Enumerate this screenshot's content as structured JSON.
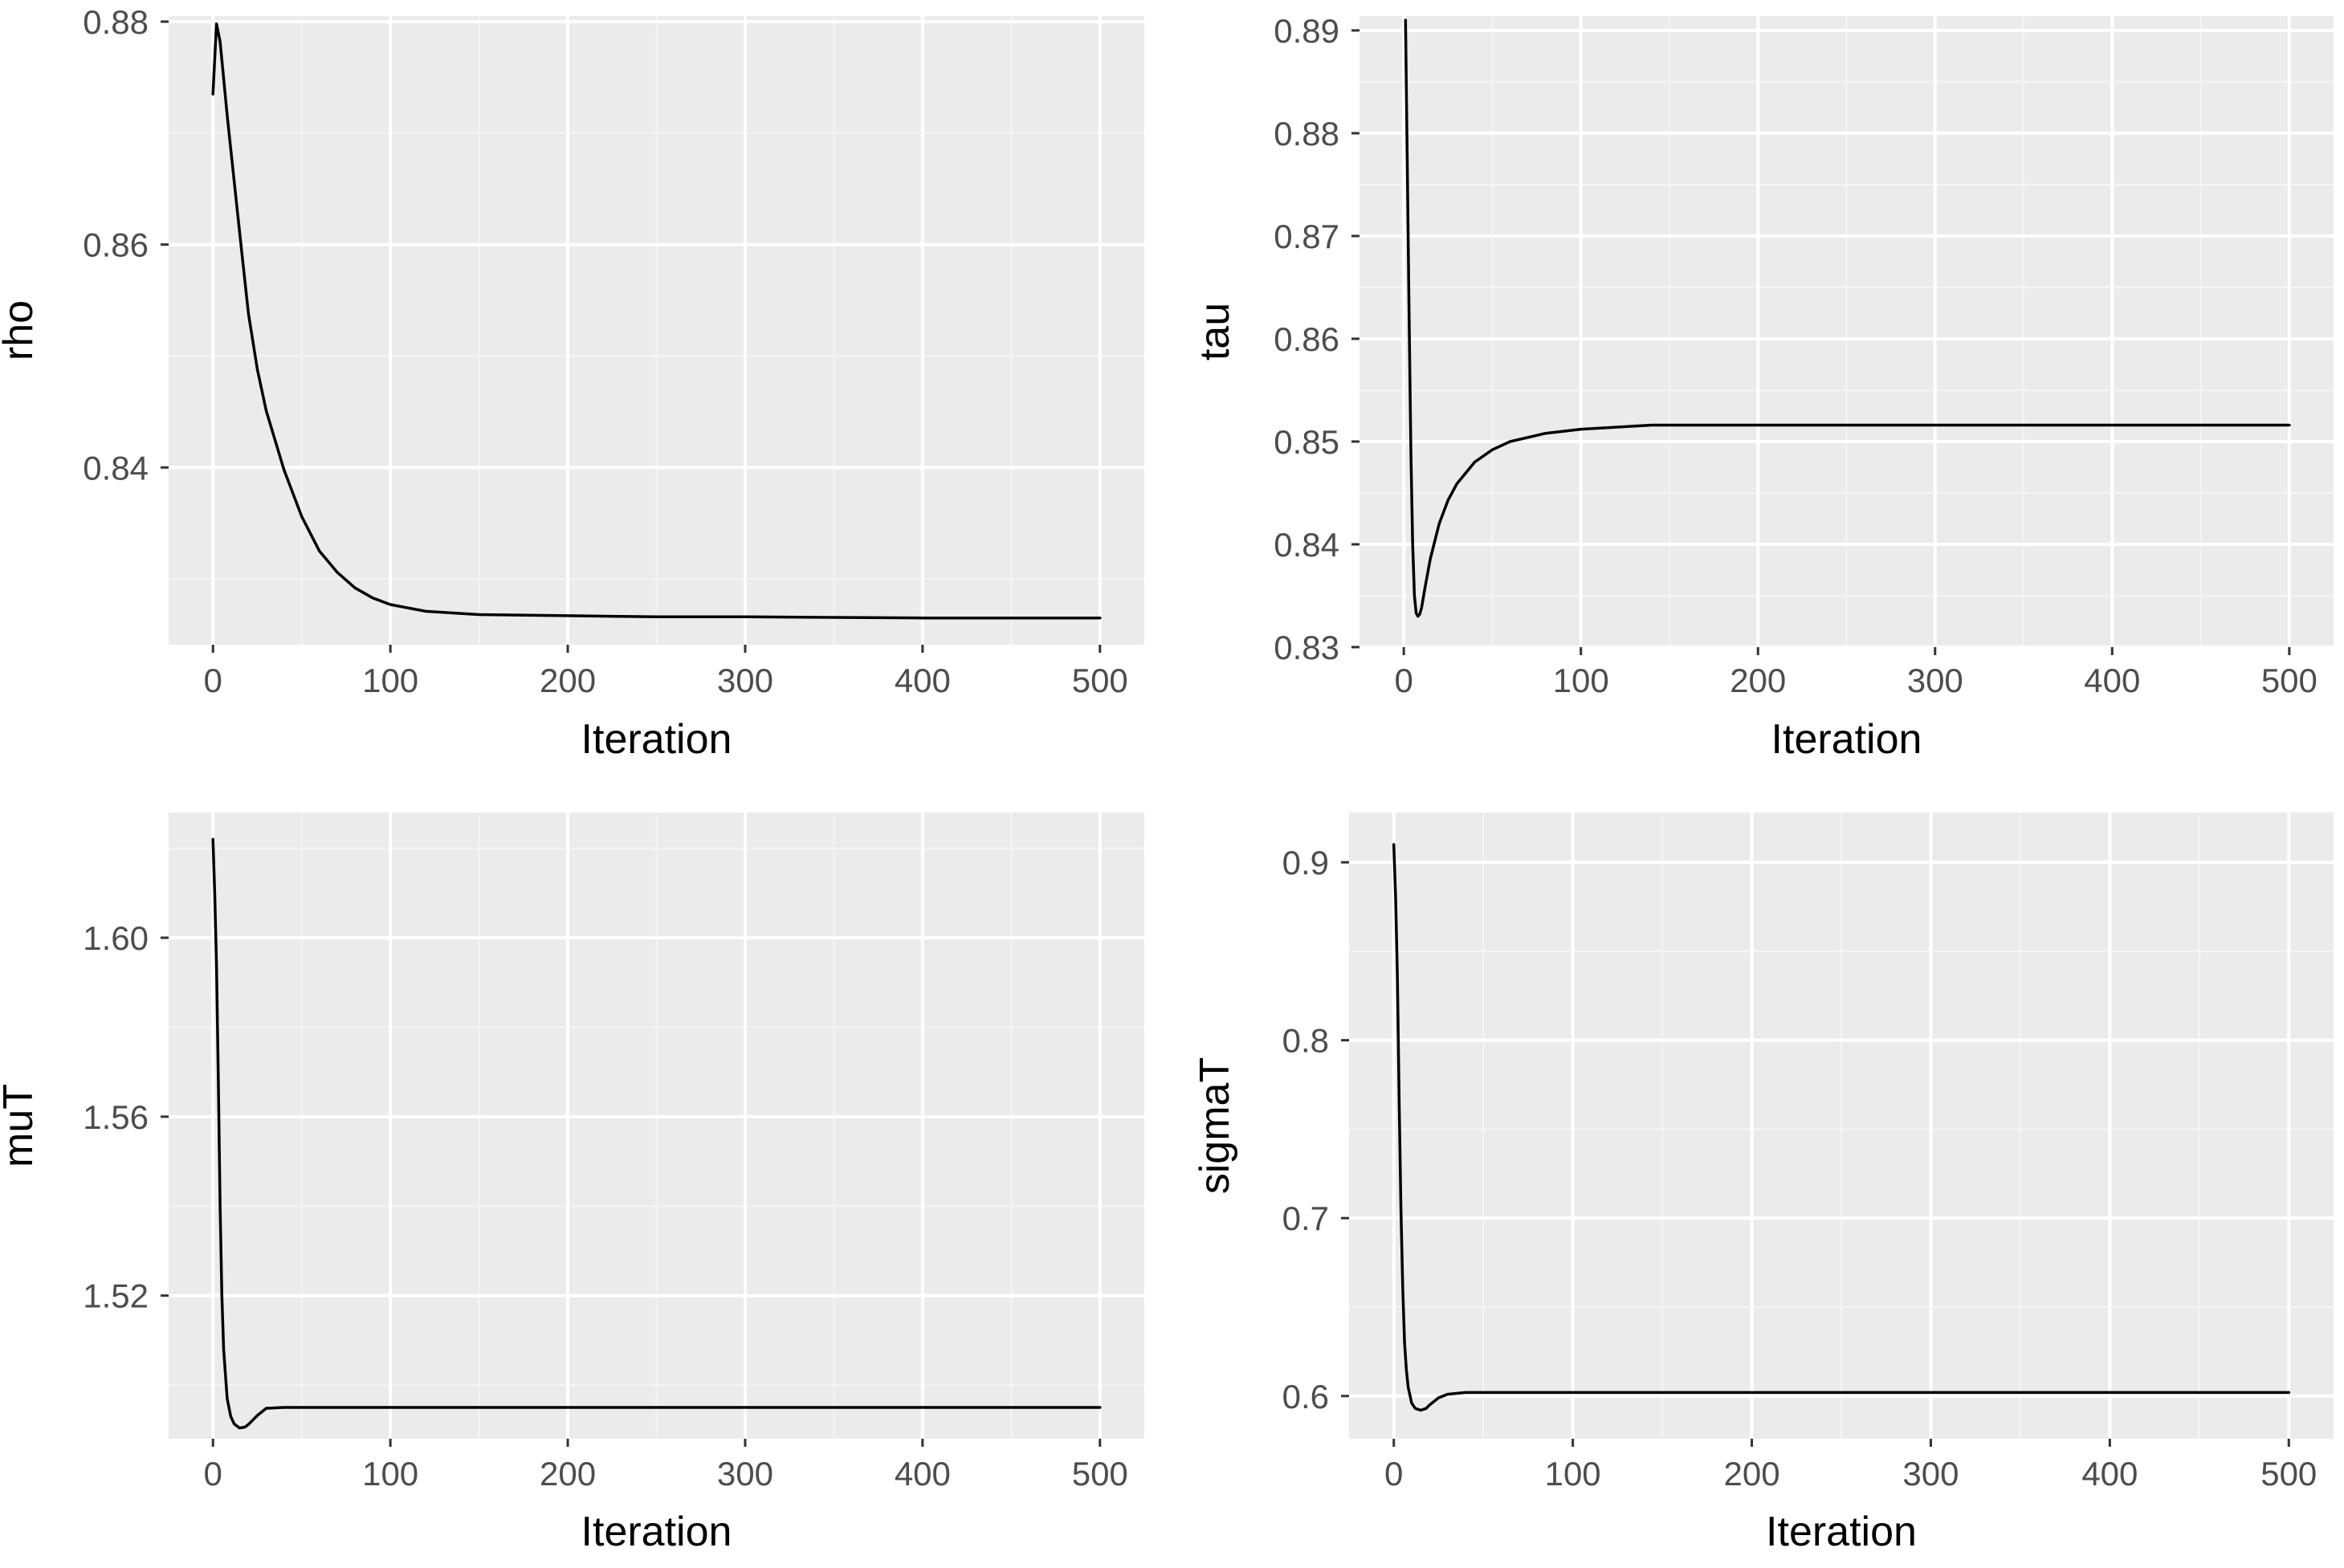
{
  "colors": {
    "panel_background": "#EBEBEB",
    "grid_major": "#FFFFFF",
    "grid_minor": "#F5F5F5",
    "line": "#000000",
    "tick_label": "#4D4D4D",
    "axis_title": "#000000"
  },
  "chart_data": [
    {
      "type": "line",
      "xlabel": "Iteration",
      "ylabel": "rho",
      "xlim": [
        -25,
        525
      ],
      "ylim": [
        0.8241,
        0.8805
      ],
      "x_ticks": [
        0,
        100,
        200,
        300,
        400,
        500
      ],
      "x_tick_labels": [
        "0",
        "100",
        "200",
        "300",
        "400",
        "500"
      ],
      "y_ticks": [
        0.84,
        0.86,
        0.88
      ],
      "y_tick_labels": [
        "0.84",
        "0.86",
        "0.88"
      ],
      "grid": true,
      "series": [
        {
          "x": [
            0,
            2,
            4,
            6,
            8,
            10,
            15,
            20,
            25,
            30,
            40,
            50,
            60,
            70,
            80,
            90,
            100,
            120,
            150,
            200,
            250,
            300,
            400,
            500
          ],
          "values": [
            0.8735,
            0.8798,
            0.8782,
            0.8749,
            0.8716,
            0.8686,
            0.8611,
            0.8538,
            0.8488,
            0.8451,
            0.8398,
            0.8356,
            0.8325,
            0.8306,
            0.8292,
            0.8283,
            0.8277,
            0.8271,
            0.8268,
            0.8267,
            0.8266,
            0.8266,
            0.8265,
            0.8265
          ]
        }
      ]
    },
    {
      "type": "line",
      "xlabel": "Iteration",
      "ylabel": "tau",
      "xlim": [
        -25,
        525
      ],
      "ylim": [
        0.83,
        0.8914
      ],
      "x_ticks": [
        0,
        100,
        200,
        300,
        400,
        500
      ],
      "x_tick_labels": [
        "0",
        "100",
        "200",
        "300",
        "400",
        "500"
      ],
      "y_ticks": [
        0.83,
        0.84,
        0.85,
        0.86,
        0.87,
        0.88,
        0.89
      ],
      "y_tick_labels": [
        "0.83",
        "0.84",
        "0.85",
        "0.86",
        "0.87",
        "0.88",
        "0.89"
      ],
      "grid": true,
      "series": [
        {
          "x": [
            1,
            2,
            3,
            4,
            5,
            6,
            7,
            8,
            9,
            10,
            12,
            15,
            20,
            25,
            30,
            40,
            50,
            60,
            80,
            100,
            140,
            200,
            300,
            400,
            500
          ],
          "values": [
            0.891,
            0.877,
            0.862,
            0.849,
            0.84,
            0.835,
            0.8333,
            0.833,
            0.8332,
            0.8338,
            0.8358,
            0.8386,
            0.842,
            0.8443,
            0.8459,
            0.848,
            0.8492,
            0.85,
            0.8508,
            0.8512,
            0.8516,
            0.8516,
            0.8516,
            0.8516,
            0.8516
          ]
        }
      ]
    },
    {
      "type": "line",
      "xlabel": "Iteration",
      "ylabel": "muT",
      "xlim": [
        -25,
        525
      ],
      "ylim": [
        1.488,
        1.628
      ],
      "x_ticks": [
        0,
        100,
        200,
        300,
        400,
        500
      ],
      "x_tick_labels": [
        "0",
        "100",
        "200",
        "300",
        "400",
        "500"
      ],
      "y_ticks": [
        1.52,
        1.56,
        1.6
      ],
      "y_tick_labels": [
        "1.52",
        "1.56",
        "1.60"
      ],
      "grid": true,
      "series": [
        {
          "x": [
            0,
            1,
            2,
            3,
            4,
            5,
            6,
            8,
            10,
            12,
            15,
            18,
            20,
            25,
            30,
            40,
            100,
            200,
            300,
            400,
            500
          ],
          "values": [
            1.622,
            1.61,
            1.594,
            1.568,
            1.54,
            1.52,
            1.508,
            1.497,
            1.493,
            1.4913,
            1.4904,
            1.4906,
            1.4912,
            1.4932,
            1.4948,
            1.495,
            1.495,
            1.495,
            1.495,
            1.495,
            1.495
          ]
        }
      ]
    },
    {
      "type": "line",
      "xlabel": "Iteration",
      "ylabel": "sigmaT",
      "xlim": [
        -25,
        525
      ],
      "ylim": [
        0.576,
        0.928
      ],
      "x_ticks": [
        0,
        100,
        200,
        300,
        400,
        500
      ],
      "x_tick_labels": [
        "0",
        "100",
        "200",
        "300",
        "400",
        "500"
      ],
      "y_ticks": [
        0.6,
        0.7,
        0.8,
        0.9
      ],
      "y_tick_labels": [
        "0.6",
        "0.7",
        "0.8",
        "0.9"
      ],
      "grid": true,
      "series": [
        {
          "x": [
            0,
            1,
            2,
            3,
            4,
            5,
            6,
            7,
            8,
            10,
            12,
            15,
            18,
            20,
            25,
            30,
            40,
            100,
            200,
            300,
            400,
            500
          ],
          "values": [
            0.91,
            0.88,
            0.835,
            0.765,
            0.705,
            0.66,
            0.63,
            0.615,
            0.605,
            0.596,
            0.593,
            0.592,
            0.593,
            0.595,
            0.599,
            0.601,
            0.602,
            0.602,
            0.602,
            0.602,
            0.602,
            0.602
          ]
        }
      ]
    }
  ]
}
